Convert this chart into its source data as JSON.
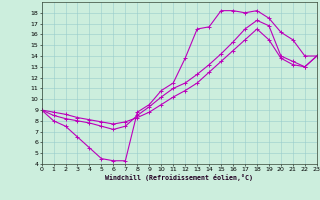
{
  "xlabel": "Windchill (Refroidissement éolien,°C)",
  "bg_color": "#cceedd",
  "line_color": "#bb00bb",
  "xmin": 0,
  "xmax": 23,
  "ymin": 4,
  "ymax": 19,
  "yticks": [
    4,
    5,
    6,
    7,
    8,
    9,
    10,
    11,
    12,
    13,
    14,
    15,
    16,
    17,
    18
  ],
  "xticks": [
    0,
    1,
    2,
    3,
    4,
    5,
    6,
    7,
    8,
    9,
    10,
    11,
    12,
    13,
    14,
    15,
    16,
    17,
    18,
    19,
    20,
    21,
    22,
    23
  ],
  "curve1_x": [
    0,
    1,
    2,
    3,
    4,
    5,
    6,
    7,
    8,
    9,
    10,
    11,
    12,
    13,
    14,
    15,
    16,
    17,
    18,
    19,
    20,
    21,
    22,
    23
  ],
  "curve1_y": [
    9.0,
    8.0,
    7.5,
    6.5,
    5.5,
    4.5,
    4.3,
    4.3,
    8.8,
    9.5,
    10.8,
    11.5,
    13.8,
    16.5,
    16.7,
    18.2,
    18.2,
    18.0,
    18.2,
    17.5,
    16.2,
    15.5,
    14.0,
    14.0
  ],
  "curve2_x": [
    0,
    1,
    2,
    3,
    4,
    5,
    6,
    7,
    8,
    9,
    10,
    11,
    12,
    13,
    14,
    15,
    16,
    17,
    18,
    19,
    20,
    21,
    22,
    23
  ],
  "curve2_y": [
    9.0,
    8.5,
    8.2,
    8.0,
    7.8,
    7.5,
    7.2,
    7.5,
    8.5,
    9.3,
    10.2,
    11.0,
    11.5,
    12.3,
    13.2,
    14.2,
    15.3,
    16.5,
    17.3,
    16.8,
    14.0,
    13.5,
    13.0,
    14.0
  ],
  "curve3_x": [
    0,
    1,
    2,
    3,
    4,
    5,
    6,
    7,
    8,
    9,
    10,
    11,
    12,
    13,
    14,
    15,
    16,
    17,
    18,
    19,
    20,
    21,
    22,
    23
  ],
  "curve3_y": [
    9.0,
    8.8,
    8.6,
    8.3,
    8.1,
    7.9,
    7.7,
    7.9,
    8.3,
    8.8,
    9.5,
    10.2,
    10.8,
    11.5,
    12.5,
    13.5,
    14.5,
    15.5,
    16.5,
    15.5,
    13.8,
    13.2,
    13.0,
    14.0
  ]
}
